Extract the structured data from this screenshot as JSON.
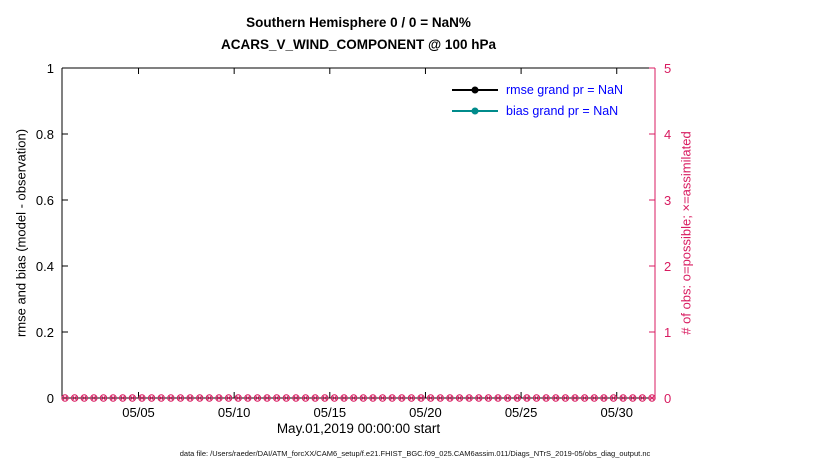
{
  "chart_data": {
    "type": "line",
    "title_line1": "Southern Hemisphere 0 / 0 = NaN%",
    "title_line2": "ACARS_V_WIND_COMPONENT @ 100 hPa",
    "x_axis": {
      "label": "May.01,2019 00:00:00 start",
      "range_days": [
        1,
        32
      ],
      "ticks": [
        {
          "day": 5,
          "label": "05/05"
        },
        {
          "day": 10,
          "label": "05/10"
        },
        {
          "day": 15,
          "label": "05/15"
        },
        {
          "day": 20,
          "label": "05/20"
        },
        {
          "day": 25,
          "label": "05/25"
        },
        {
          "day": 30,
          "label": "05/30"
        }
      ]
    },
    "left_axis": {
      "label": "rmse and bias (model - observation)",
      "range": [
        0,
        1
      ],
      "tick_values": [
        0,
        0.2,
        0.4,
        0.6,
        0.8,
        1
      ],
      "tick_labels": [
        "0",
        "0.2",
        "0.4",
        "0.6",
        "0.8",
        "1"
      ],
      "color": "#000000"
    },
    "right_axis": {
      "label": "# of obs: o=possible; ×=assimilated",
      "range": [
        0,
        5
      ],
      "tick_values": [
        0,
        1,
        2,
        3,
        4,
        5
      ],
      "tick_labels": [
        "0",
        "1",
        "2",
        "3",
        "4",
        "5"
      ],
      "color": "#d81b60"
    },
    "series": [
      {
        "name": "rmse",
        "color": "#000000",
        "marker": "dot",
        "axis": "left",
        "values": []
      },
      {
        "name": "bias",
        "color": "#008b8b",
        "marker": "dot",
        "axis": "left",
        "values": []
      },
      {
        "name": "possible-obs",
        "axis": "right",
        "marker": "o",
        "color": "#d81b60",
        "constant_value": 0,
        "n_points": 62
      },
      {
        "name": "assimilated-obs",
        "axis": "right",
        "marker": "x",
        "color": "#d81b60",
        "constant_value": 0,
        "n_points": 62
      }
    ],
    "legend": {
      "text_color": "#0000ff",
      "entries": [
        {
          "label": "rmse grand pr = NaN",
          "color": "#000000"
        },
        {
          "label": "bias grand pr = NaN",
          "color": "#008b8b"
        }
      ]
    },
    "footer": "data file: /Users/raeder/DAI/ATM_forcXX/CAM6_setup/f.e21.FHIST_BGC.f09_025.CAM6assim.011/Diags_NTrS_2019-05/obs_diag_output.nc"
  }
}
